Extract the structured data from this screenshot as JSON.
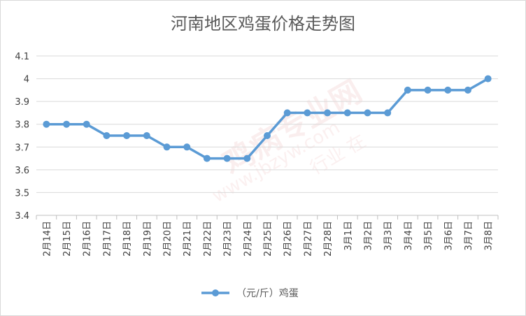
{
  "chart_data": {
    "type": "line",
    "title": "河南地区鸡蛋价格走势图",
    "categories": [
      "2月14日",
      "2月15日",
      "2月16日",
      "2月17日",
      "2月18日",
      "2月19日",
      "2月20日",
      "2月21日",
      "2月22日",
      "2月23日",
      "2月24日",
      "2月25日",
      "2月26日",
      "2月27日",
      "2月28日",
      "3月1日",
      "3月2日",
      "3月3日",
      "3月4日",
      "3月5日",
      "3月6日",
      "3月7日",
      "3月8日"
    ],
    "series": [
      {
        "name": "（元/斤）鸡蛋",
        "values": [
          3.8,
          3.8,
          3.8,
          3.75,
          3.75,
          3.75,
          3.7,
          3.7,
          3.65,
          3.65,
          3.65,
          3.75,
          3.85,
          3.85,
          3.85,
          3.85,
          3.85,
          3.85,
          3.95,
          3.95,
          3.95,
          3.95,
          4.0
        ]
      }
    ],
    "y_ticks": [
      "3.4",
      "3.5",
      "3.6",
      "3.7",
      "3.8",
      "3.9",
      "4",
      "4.1"
    ],
    "ylim": [
      3.4,
      4.1
    ],
    "xlabel": "",
    "ylabel": "",
    "grid": true,
    "legend_position": "bottom",
    "colors": {
      "series": "#5b9bd5",
      "grid": "#d9d9d9",
      "axis": "#bfbfbf"
    }
  },
  "watermark": {
    "main": "鸡病专业网",
    "url": "www.jbzyw.com",
    "sub": "行业 在"
  }
}
